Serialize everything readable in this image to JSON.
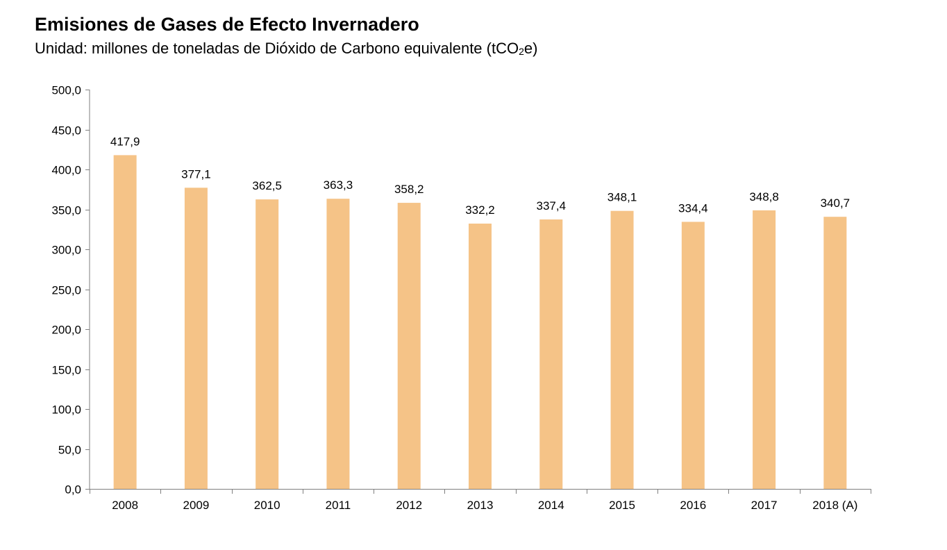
{
  "header": {
    "title": "Emisiones de Gases de Efecto Invernadero",
    "subtitle_prefix": "Unidad: millones de toneladas de Dióxido de Carbono equivalente (tCO",
    "subtitle_sub": "2",
    "subtitle_suffix": "e)"
  },
  "chart_data": {
    "type": "bar",
    "title": "Emisiones de Gases de Efecto Invernadero",
    "subtitle": "Unidad: millones de toneladas de Dióxido de Carbono equivalente (tCO2e)",
    "xlabel": "",
    "ylabel": "",
    "ylim": [
      0,
      500
    ],
    "ytick_step": 50,
    "ytick_labels": [
      "0,0",
      "50,0",
      "100,0",
      "150,0",
      "200,0",
      "250,0",
      "300,0",
      "350,0",
      "400,0",
      "450,0",
      "500,0"
    ],
    "grid": false,
    "legend": "none",
    "categories": [
      "2008",
      "2009",
      "2010",
      "2011",
      "2012",
      "2013",
      "2014",
      "2015",
      "2016",
      "2017",
      "2018 (A)"
    ],
    "values": [
      417.9,
      377.1,
      362.5,
      363.3,
      358.2,
      332.2,
      337.4,
      348.1,
      334.4,
      348.8,
      340.7
    ],
    "value_labels": [
      "417,9",
      "377,1",
      "362,5",
      "363,3",
      "358,2",
      "332,2",
      "337,4",
      "348,1",
      "334,4",
      "348,8",
      "340,7"
    ],
    "bar_color": "#F5C387",
    "axis_color": "#7f7f7f"
  }
}
